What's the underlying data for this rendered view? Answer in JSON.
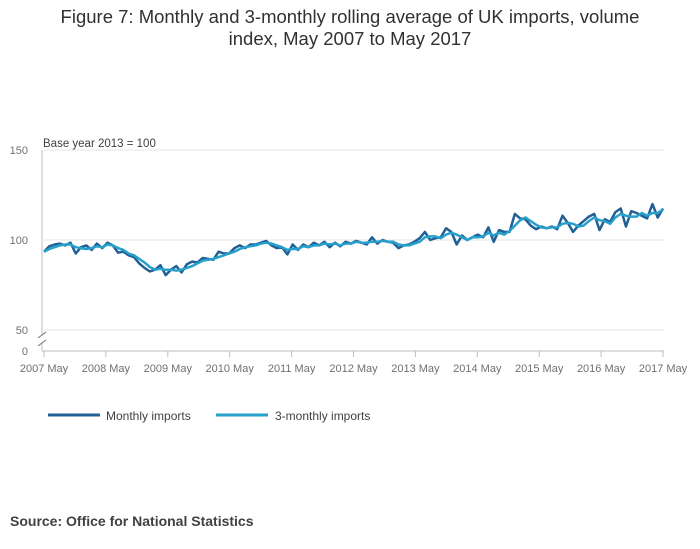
{
  "header": {
    "title_line1": "Figure 7: Monthly and 3-monthly rolling average of UK imports, volume",
    "title_line2": "index, May 2007 to May 2017"
  },
  "footer": {
    "source": "Source: Office for National Statistics"
  },
  "colors": {
    "monthly": "#206095",
    "rolling": "#27a0cc",
    "grid": "#e6e6e6",
    "axis": "#bebebe"
  },
  "chart_data": {
    "type": "line",
    "title": "Figure 7: Monthly and 3-monthly rolling average of UK imports, volume index, May 2007 to May 2017",
    "annotation": "Base year 2013 = 100",
    "xlabel": "",
    "ylabel": "",
    "ylim": [
      0,
      150
    ],
    "y_ticks": [
      0,
      50,
      100,
      150
    ],
    "y_axis_break": true,
    "x_ticks": [
      "2007 May",
      "2008 May",
      "2009 May",
      "2010 May",
      "2011 May",
      "2012 May",
      "2013 May",
      "2014 May",
      "2015 May",
      "2016 May",
      "2017 May"
    ],
    "legend": [
      "Monthly imports",
      "3-monthly imports"
    ],
    "legend_position": "bottom-left",
    "series": [
      {
        "name": "Monthly imports",
        "values": [
          93.5,
          96.5,
          97.5,
          98.0,
          97.0,
          98.5,
          92.5,
          96.0,
          97.0,
          94.5,
          98.0,
          95.5,
          98.5,
          97.0,
          93.0,
          93.5,
          91.5,
          90.5,
          87.0,
          84.5,
          82.5,
          83.5,
          86.0,
          80.5,
          83.5,
          85.5,
          82.0,
          86.5,
          88.0,
          87.5,
          90.0,
          89.5,
          89.0,
          93.5,
          92.5,
          92.5,
          95.5,
          97.0,
          95.5,
          97.5,
          97.5,
          98.5,
          99.5,
          97.0,
          95.5,
          96.0,
          92.0,
          97.5,
          94.5,
          97.5,
          96.0,
          98.5,
          97.0,
          99.0,
          96.0,
          98.5,
          96.5,
          99.0,
          98.0,
          99.5,
          98.5,
          97.5,
          101.5,
          98.0,
          100.0,
          99.0,
          98.5,
          95.5,
          97.0,
          97.5,
          99.0,
          101.0,
          104.5,
          100.0,
          101.0,
          101.5,
          106.5,
          104.5,
          97.5,
          102.5,
          100.0,
          101.5,
          103.0,
          101.5,
          107.0,
          99.0,
          105.5,
          104.5,
          104.5,
          114.5,
          112.0,
          111.5,
          108.0,
          106.0,
          107.5,
          106.5,
          107.5,
          106.0,
          113.5,
          109.5,
          104.5,
          108.0,
          110.5,
          113.0,
          114.5,
          105.5,
          111.5,
          110.0,
          115.5,
          117.5,
          107.5,
          116.0,
          115.0,
          113.5,
          112.0,
          120.0,
          112.5,
          117.5
        ]
      },
      {
        "name": "3-monthly imports",
        "values": [
          93.5,
          95.0,
          96.0,
          97.0,
          97.5,
          97.5,
          96.0,
          95.5,
          95.0,
          95.5,
          96.5,
          96.0,
          97.5,
          97.0,
          95.5,
          94.5,
          92.5,
          91.5,
          89.5,
          87.5,
          85.0,
          83.5,
          84.0,
          83.5,
          83.5,
          83.0,
          83.5,
          84.5,
          85.5,
          87.0,
          88.5,
          89.0,
          89.5,
          90.5,
          91.5,
          92.5,
          93.5,
          95.0,
          96.0,
          96.5,
          97.0,
          98.0,
          98.5,
          98.0,
          97.0,
          96.0,
          94.5,
          95.0,
          95.0,
          96.5,
          96.0,
          97.0,
          97.0,
          98.0,
          97.5,
          98.0,
          97.0,
          98.0,
          98.0,
          99.0,
          98.5,
          98.5,
          99.0,
          99.0,
          99.5,
          99.0,
          99.0,
          97.5,
          97.0,
          97.0,
          98.0,
          99.0,
          101.5,
          102.0,
          102.0,
          101.0,
          103.0,
          104.0,
          103.0,
          101.5,
          100.0,
          101.5,
          101.5,
          102.0,
          104.0,
          102.5,
          104.0,
          103.0,
          105.0,
          108.0,
          111.0,
          112.5,
          110.5,
          108.5,
          107.0,
          106.5,
          107.0,
          107.0,
          109.0,
          109.5,
          109.0,
          107.5,
          108.0,
          110.5,
          112.5,
          111.0,
          110.5,
          109.0,
          112.5,
          114.5,
          113.5,
          113.0,
          113.0,
          115.0,
          113.5,
          115.0,
          115.0,
          117.0
        ]
      }
    ]
  }
}
